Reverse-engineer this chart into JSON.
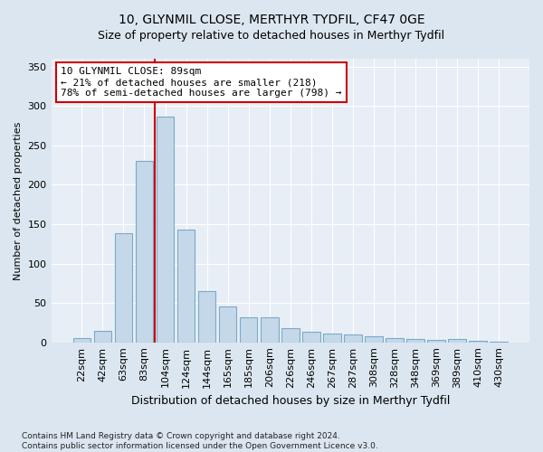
{
  "title": "10, GLYNMIL CLOSE, MERTHYR TYDFIL, CF47 0GE",
  "subtitle": "Size of property relative to detached houses in Merthyr Tydfil",
  "xlabel": "Distribution of detached houses by size in Merthyr Tydfil",
  "ylabel": "Number of detached properties",
  "categories": [
    "22sqm",
    "42sqm",
    "63sqm",
    "83sqm",
    "104sqm",
    "124sqm",
    "144sqm",
    "165sqm",
    "185sqm",
    "206sqm",
    "226sqm",
    "246sqm",
    "267sqm",
    "287sqm",
    "308sqm",
    "328sqm",
    "348sqm",
    "369sqm",
    "389sqm",
    "410sqm",
    "430sqm"
  ],
  "values": [
    5,
    14,
    138,
    230,
    287,
    143,
    65,
    46,
    32,
    32,
    18,
    13,
    11,
    10,
    8,
    5,
    4,
    3,
    4,
    2,
    1
  ],
  "bar_color": "#c5d8ea",
  "bar_edge_color": "#7aaac8",
  "vline_color": "#cc0000",
  "vline_x": 3.5,
  "annotation_text": "10 GLYNMIL CLOSE: 89sqm\n← 21% of detached houses are smaller (218)\n78% of semi-detached houses are larger (798) →",
  "annotation_box_facecolor": "#ffffff",
  "annotation_box_edgecolor": "#cc0000",
  "ylim": [
    0,
    360
  ],
  "yticks": [
    0,
    50,
    100,
    150,
    200,
    250,
    300,
    350
  ],
  "footer": "Contains HM Land Registry data © Crown copyright and database right 2024.\nContains public sector information licensed under the Open Government Licence v3.0.",
  "bg_color": "#dce6f0",
  "plot_bg_color": "#e8eef5",
  "title_fontsize": 10,
  "subtitle_fontsize": 9,
  "xlabel_fontsize": 9,
  "ylabel_fontsize": 8,
  "tick_fontsize": 8,
  "annot_fontsize": 8,
  "footer_fontsize": 6.5
}
